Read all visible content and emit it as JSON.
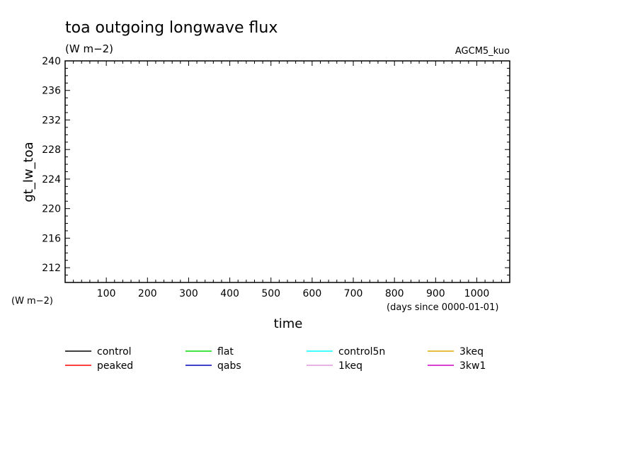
{
  "chart_data": {
    "type": "line",
    "title": "toa outgoing longwave flux",
    "subtitle": "(W m−2)",
    "model_label": "AGCM5_kuo",
    "xlabel": "time",
    "x_unit": "(days since 0000-01-01)",
    "ylabel": "gt_lw_toa",
    "y_unit": "(W m−2)",
    "xlim": [
      0,
      1080
    ],
    "ylim": [
      210,
      240
    ],
    "xticks": [
      100,
      200,
      300,
      400,
      500,
      600,
      700,
      800,
      900,
      1000
    ],
    "xtick_labels": [
      "100",
      "200",
      "300",
      "400",
      "500",
      "600",
      "700",
      "800",
      "900",
      "1000"
    ],
    "yticks": [
      212,
      216,
      220,
      224,
      228,
      232,
      236,
      240
    ],
    "ytick_labels": [
      "212",
      "216",
      "220",
      "224",
      "228",
      "232",
      "236",
      "240"
    ],
    "grid": false,
    "legend_position": "bottom",
    "series": [
      {
        "name": "control",
        "color": "#000000",
        "x": [],
        "y": []
      },
      {
        "name": "peaked",
        "color": "#ff0000",
        "x": [],
        "y": []
      },
      {
        "name": "flat",
        "color": "#00dd00",
        "x": [],
        "y": []
      },
      {
        "name": "qabs",
        "color": "#0000bb",
        "x": [],
        "y": []
      },
      {
        "name": "control5n",
        "color": "#00ffff",
        "x": [],
        "y": []
      },
      {
        "name": "1keq",
        "color": "#dd99dd",
        "x": [],
        "y": []
      },
      {
        "name": "3keq",
        "color": "#ddaa00",
        "x": [],
        "y": []
      },
      {
        "name": "3kw1",
        "color": "#cc00cc",
        "x": [],
        "y": []
      }
    ]
  }
}
